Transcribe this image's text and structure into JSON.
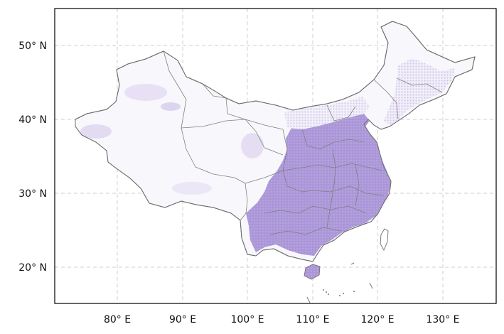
{
  "map": {
    "x_axis": {
      "ticks": [
        {
          "lon": 80,
          "label": "80° E"
        },
        {
          "lon": 90,
          "label": "90° E"
        },
        {
          "lon": 100,
          "label": "100° E"
        },
        {
          "lon": 110,
          "label": "110° E"
        },
        {
          "lon": 120,
          "label": "120° E"
        },
        {
          "lon": 130,
          "label": "130° E"
        }
      ],
      "range": [
        70.8,
        138.5
      ]
    },
    "y_axis": {
      "ticks": [
        {
          "lat": 50,
          "label": "50° N"
        },
        {
          "lat": 40,
          "label": "40° N"
        },
        {
          "lat": 30,
          "label": "30° N"
        },
        {
          "lat": 20,
          "label": "20° N"
        }
      ],
      "range": [
        15.0,
        55.0
      ]
    },
    "grid": true,
    "colors": {
      "land_fill": "#f7f6fb",
      "data_high": "#a58fd4",
      "data_mid": "#cbbfe6",
      "border": "#6e6e6e",
      "grid": "#cfcfcf"
    }
  }
}
